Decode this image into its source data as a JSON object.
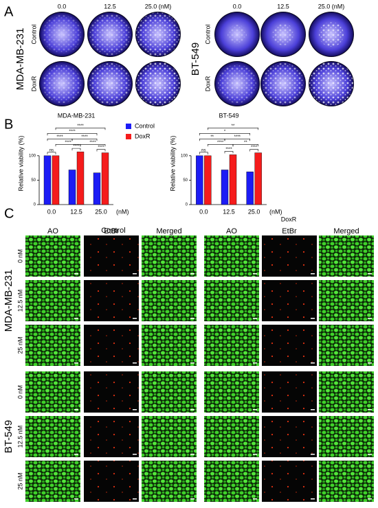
{
  "panel_labels": [
    "A",
    "B",
    "C"
  ],
  "panel_a": {
    "concentrations": [
      "0.0",
      "12.5",
      "25.0 (nM)"
    ],
    "cell_lines": [
      {
        "name": "MDA-MB-231",
        "rows": [
          "Control",
          "DoxR"
        ]
      },
      {
        "name": "BT-549",
        "rows": [
          "Control",
          "DoxR"
        ]
      }
    ]
  },
  "chart_data": [
    {
      "type": "bar",
      "title": "MDA-MB-231",
      "categories": [
        "0.0",
        "12.5",
        "25.0"
      ],
      "x_unit": "(nM)",
      "ylabel": "Relative viability (%)",
      "series": [
        {
          "name": "Control",
          "color": "#1c1cf5",
          "values": [
            100,
            71,
            65
          ]
        },
        {
          "name": "DoxR",
          "color": "#f51c1c",
          "values": [
            100,
            108,
            106
          ]
        }
      ],
      "ylim": [
        0,
        170
      ],
      "yticks": [
        0,
        50,
        100
      ],
      "legend": true,
      "annotations": [
        "ns",
        "****",
        "****",
        "****",
        "****",
        "****",
        "****",
        "****",
        "****"
      ]
    },
    {
      "type": "bar",
      "title": "BT-549",
      "categories": [
        "0.0",
        "12.5",
        "25.0"
      ],
      "x_unit": "(nM)",
      "ylabel": "Relative viability (%)",
      "series": [
        {
          "name": "Control",
          "color": "#1c1cf5",
          "values": [
            100,
            71,
            67
          ]
        },
        {
          "name": "DoxR",
          "color": "#f51c1c",
          "values": [
            100,
            102,
            106
          ]
        }
      ],
      "ylim": [
        0,
        170
      ],
      "yticks": [
        0,
        50,
        100
      ],
      "legend": false,
      "annotations": [
        "ns",
        "****",
        "****",
        "****",
        "**",
        "**",
        "****",
        "*",
        "**"
      ]
    }
  ],
  "panel_c": {
    "groups": [
      "Control",
      "DoxR"
    ],
    "stains": [
      "AO",
      "EtBr",
      "Merged"
    ],
    "cell_lines": [
      "MDA-MB-231",
      "BT-549"
    ],
    "doses": [
      "0 nM",
      "12.5 nM",
      "25 nM"
    ]
  }
}
